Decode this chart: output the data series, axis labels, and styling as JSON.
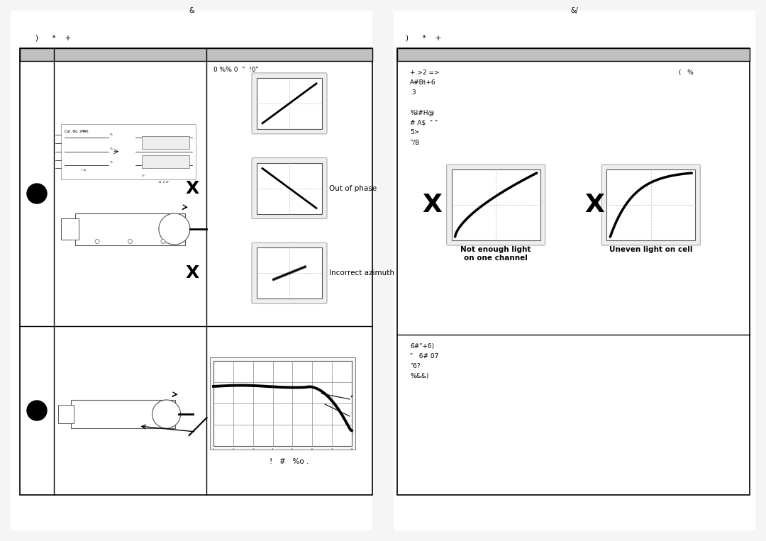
{
  "page_width": 10.8,
  "page_height": 7.63,
  "bg_color": "#ffffff",
  "page_header_left": "&",
  "page_header_right": "&/",
  "left_col_header": ")      *    +",
  "right_col_header": ")      *    +",
  "left_top_label": "0 %% 0  \"  !0\"",
  "out_of_phase_label": "Out of phase",
  "incorrect_azimuth_label": "Incorrect azimuth",
  "caption_bottom_left": "!   #   %o .",
  "right_text_line1": "+.>2 =>",
  "right_text_line2": "A#Bt+6",
  "right_text_line3": ".3",
  "right_text_line5": "%l#H@",
  "right_text_line6": "# A$  \" \"",
  "right_text_line7": "5>",
  "right_text_line8": "\"/B",
  "right_corner_text": "(   %",
  "not_enough_light_label": "Not enough light\non one channel",
  "uneven_light_label": "Uneven light on cell",
  "rbot_line1": "6#\"+6)",
  "rbot_line2": "\"   6# 07",
  "rbot_line3": "\"6?",
  "rbot_line4": "%&&)"
}
